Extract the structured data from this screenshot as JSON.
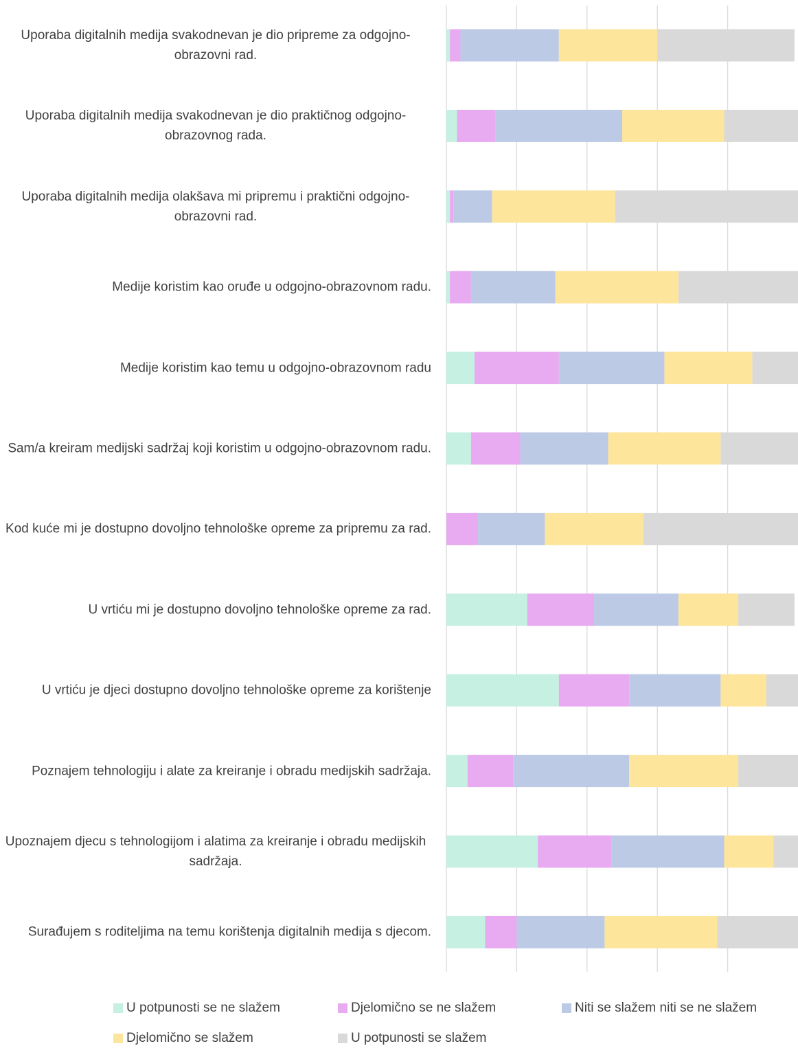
{
  "chart_data": {
    "type": "stacked-bar-horizontal",
    "categories": [
      "Uporaba digitalnih medija svakodnevan je dio pripreme za odgojno-obrazovni rad.",
      "Uporaba digitalnih medija svakodnevan je dio praktičnog odgojno-obrazovnog rada.",
      "Uporaba digitalnih medija olakšava mi pripremu i praktični odgojno-obrazovni rad.",
      "Medije koristim kao oruđe u odgojno-obrazovnom radu.",
      "Medije koristim kao temu u odgojno-obrazovnom radu",
      "Sam/a kreiram medijski sadržaj koji koristim u odgojno-obrazovnom radu.",
      "Kod kuće mi je dostupno dovoljno tehnološke opreme za pripremu za rad.",
      "U vrtiću mi je dostupno dovoljno tehnološke opreme za rad.",
      "U vrtiću je djeci dostupno dovoljno tehnološke opreme za korištenje",
      "Poznajem tehnologiju i alate za kreiranje i obradu medijskih sadržaja.",
      "Upoznajem djecu s tehnologijom i alatima za kreiranje i obradu medijskih sadržaja.",
      "Surađujem s roditeljima na temu korištenja digitalnih medija s djecom."
    ],
    "series": [
      {
        "name": "U potpunosti se ne slažem",
        "color": "#c6f0e2",
        "values": [
          1,
          3,
          1,
          1,
          8,
          7,
          0,
          23,
          32,
          6,
          26,
          11
        ]
      },
      {
        "name": "Djelomično se ne slažem",
        "color": "#e8aaf0",
        "values": [
          3,
          11,
          1,
          6,
          24,
          14,
          9,
          19,
          20,
          13,
          21,
          9
        ]
      },
      {
        "name": "Niti se slažem niti se ne slažem",
        "color": "#bccae6",
        "values": [
          28,
          36,
          11,
          24,
          30,
          25,
          19,
          24,
          26,
          33,
          32,
          25
        ]
      },
      {
        "name": "Djelomično se slažem",
        "color": "#fde59c",
        "values": [
          28,
          29,
          35,
          35,
          25,
          32,
          28,
          17,
          13,
          31,
          14,
          32
        ]
      },
      {
        "name": "U potpunosti se slažem",
        "color": "#d9d9d9",
        "values": [
          39,
          21,
          52,
          34,
          13,
          22,
          44,
          16,
          9,
          17,
          7,
          23
        ]
      }
    ],
    "xlim": [
      0,
      100
    ],
    "xticks": [
      0,
      20,
      40,
      60,
      80
    ],
    "grid": true,
    "legend": "bottom"
  }
}
